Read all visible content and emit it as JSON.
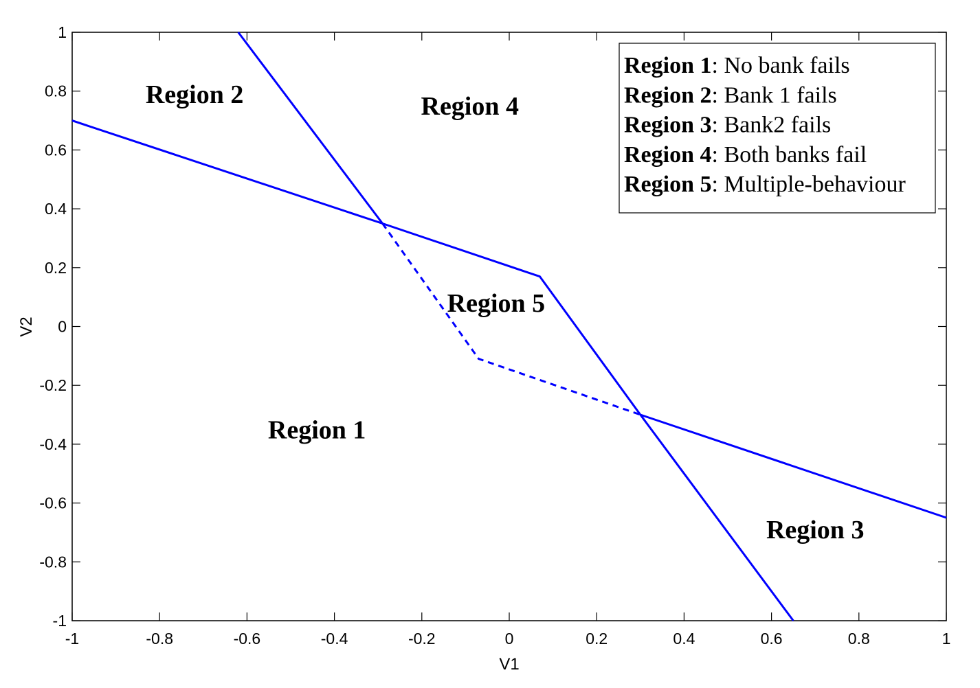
{
  "chart_data": {
    "type": "line",
    "xlabel": "V1",
    "ylabel": "V2",
    "xlim": [
      -1,
      1
    ],
    "ylim": [
      -1,
      1
    ],
    "xticks": [
      -1,
      -0.8,
      -0.6,
      -0.4,
      -0.2,
      0,
      0.2,
      0.4,
      0.6,
      0.8,
      1
    ],
    "yticks": [
      -1,
      -0.8,
      -0.6,
      -0.4,
      -0.2,
      0,
      0.2,
      0.4,
      0.6,
      0.8,
      1
    ],
    "xtick_labels": [
      "-1",
      "-0.8",
      "-0.6",
      "-0.4",
      "-0.2",
      "0",
      "0.2",
      "0.4",
      "0.6",
      "0.8",
      "1"
    ],
    "ytick_labels": [
      "-1",
      "-0.8",
      "-0.6",
      "-0.4",
      "-0.2",
      "0",
      "0.2",
      "0.4",
      "0.6",
      "0.8",
      "1"
    ],
    "line_color": "#0000ff",
    "series": [
      {
        "style": "solid",
        "x": [
          -1,
          -0.29,
          0.07,
          0.3,
          1
        ],
        "y": [
          0.7,
          0.35,
          0.17,
          -0.3,
          -0.65
        ]
      },
      {
        "style": "solid",
        "x": [
          -0.62,
          -0.29
        ],
        "y": [
          1,
          0.35
        ]
      },
      {
        "style": "solid",
        "x": [
          0.3,
          0.65
        ],
        "y": [
          -0.3,
          -1
        ]
      },
      {
        "style": "dashed",
        "x": [
          -0.29,
          -0.07,
          0.3
        ],
        "y": [
          0.35,
          -0.11,
          -0.3
        ]
      }
    ],
    "annotations": [
      {
        "text": "Region 1",
        "x": -0.44,
        "y": -0.35
      },
      {
        "text": "Region 2",
        "x": -0.72,
        "y": 0.79
      },
      {
        "text": "Region 3",
        "x": 0.7,
        "y": -0.69
      },
      {
        "text": "Region 4",
        "x": -0.09,
        "y": 0.75
      },
      {
        "text": "Region 5",
        "x": -0.03,
        "y": 0.08
      }
    ],
    "legend": {
      "placement": "top-right",
      "entries": [
        {
          "bold": "Region 1",
          "text": ": No bank fails"
        },
        {
          "bold": "Region 2",
          "text": ": Bank 1 fails"
        },
        {
          "bold": "Region 3",
          "text": ": Bank2 fails"
        },
        {
          "bold": "Region 4",
          "text": ": Both banks fail"
        },
        {
          "bold": "Region 5",
          "text": ": Multiple-behaviour"
        }
      ]
    },
    "grid": false
  }
}
